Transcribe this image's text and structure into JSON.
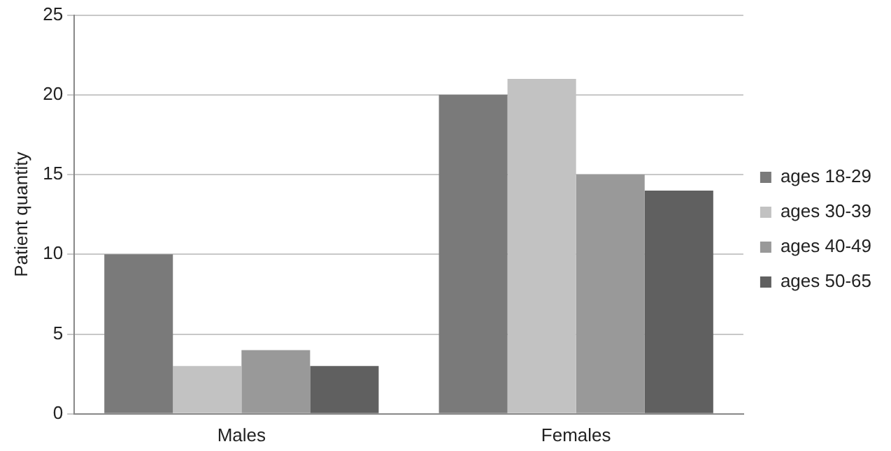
{
  "chart_data": {
    "type": "bar",
    "ylabel": "Patient quantity",
    "categories": [
      "Males",
      "Females"
    ],
    "series": [
      {
        "name": "ages 18-29",
        "color": "#7a7a7a",
        "values": [
          10,
          20
        ]
      },
      {
        "name": "ages 30-39",
        "color": "#c2c2c2",
        "values": [
          3,
          21
        ]
      },
      {
        "name": "ages 40-49",
        "color": "#999999",
        "values": [
          4,
          15
        ]
      },
      {
        "name": "ages 50-65",
        "color": "#606060",
        "values": [
          3,
          14
        ]
      }
    ],
    "ylim": [
      0,
      25
    ],
    "yticks": [
      0,
      5,
      10,
      15,
      20,
      25
    ],
    "grid": "y",
    "legend": "right"
  }
}
